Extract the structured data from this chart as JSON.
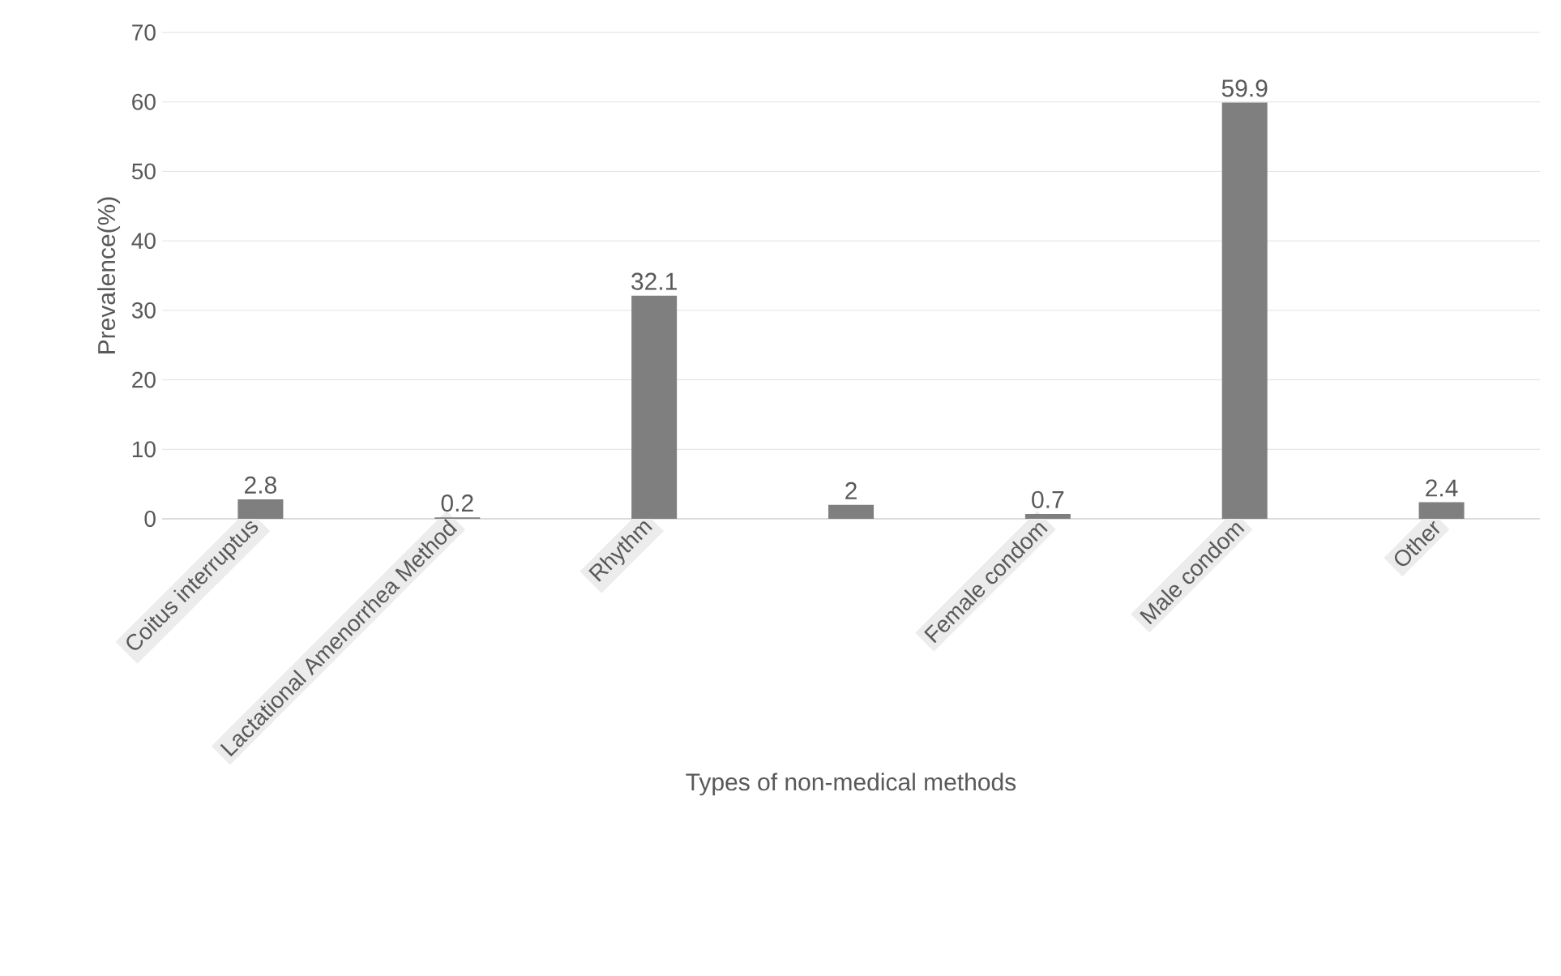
{
  "chart_data": {
    "type": "bar",
    "xlabel": "Types of non-medical methods",
    "ylabel": "Prevalence(%)",
    "categories": [
      "Coitus interruptus",
      "Lactational Amenorrhea Method",
      "Rhythm",
      null,
      "Female condom",
      "Male condom",
      "Other"
    ],
    "values": [
      2.8,
      0.2,
      32.1,
      2,
      0.7,
      59.9,
      2.4
    ],
    "color": "#7f7f7f",
    "ylim": [
      0,
      70
    ],
    "yticks": [
      0,
      10,
      20,
      30,
      40,
      50,
      60,
      70
    ],
    "grid": "y",
    "data_labels": true
  }
}
